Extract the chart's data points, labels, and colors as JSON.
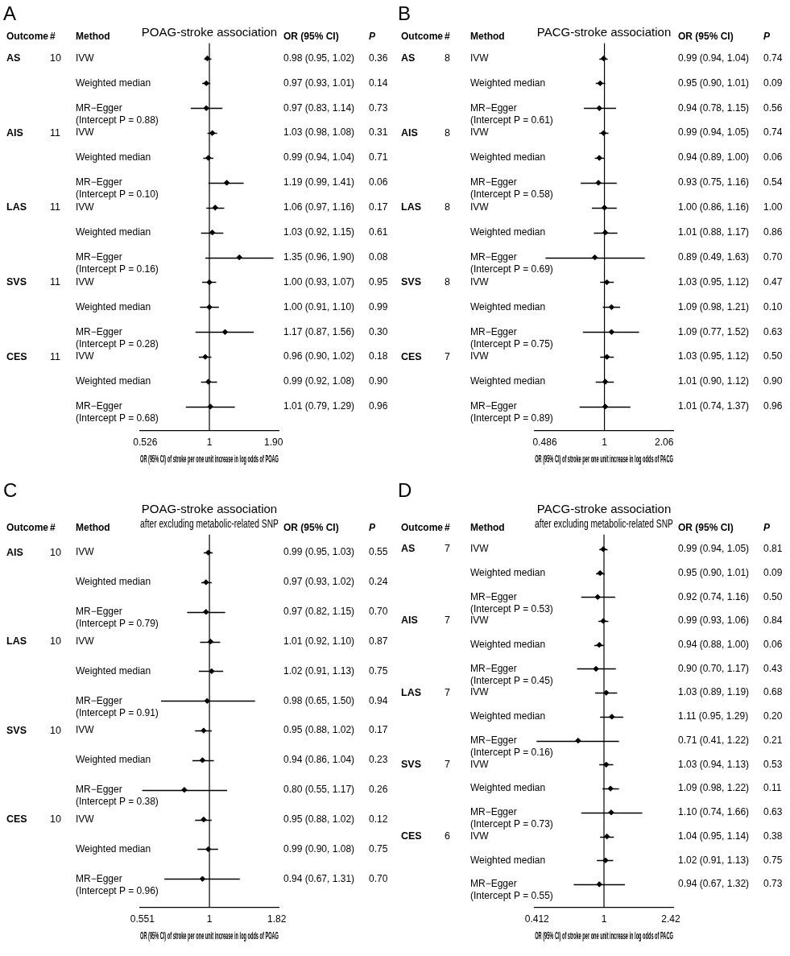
{
  "chart_data": [
    {
      "type": "scatter",
      "orientation": "horizontal",
      "title": "POAG-stroke association",
      "xlabel": "OR (95% CI) of stroke per one unit increase in log odds of POAG",
      "log": "x",
      "xlim": [
        0.5,
        2.0
      ],
      "xticks": [
        0.526,
        1,
        {
          "value": 1.9,
          "label": "1.90"
        }
      ],
      "ref_lines": [
        {
          "axis": "x",
          "value": 1
        }
      ],
      "marker": "diamond",
      "color": "#000000",
      "legend": false,
      "annotations": [
        "A",
        "Outcome",
        "#",
        "Method",
        "OR (95% CI)",
        "P",
        "0.36",
        "0.14",
        "0.73",
        "0.31",
        "0.71",
        "0.06",
        "0.17",
        "0.61",
        "0.08",
        "0.95",
        "0.99",
        "0.30",
        "0.18",
        "0.90",
        "0.96",
        "AS",
        "10",
        "AIS",
        "11",
        "LAS",
        "11",
        "SVS",
        "11",
        "CES",
        "11"
      ],
      "categories": [
        "IVW",
        "Weighted median",
        "MR−Egger\n(Intercept P = 0.88)",
        "IVW",
        "Weighted median",
        "MR−Egger\n(Intercept P = 0.10)",
        "IVW",
        "Weighted median",
        "MR−Egger\n(Intercept P = 0.16)",
        "IVW",
        "Weighted median",
        "MR−Egger\n(Intercept P = 0.28)",
        "IVW",
        "Weighted median",
        "MR−Egger\n(Intercept P = 0.68)"
      ],
      "values": [
        0.98,
        0.97,
        0.97,
        1.03,
        0.99,
        1.19,
        1.06,
        1.03,
        1.35,
        1.0,
        1.0,
        1.17,
        0.96,
        0.99,
        1.01
      ],
      "errors": [
        [
          0.95,
          1.02
        ],
        [
          0.93,
          1.01
        ],
        [
          0.83,
          1.14
        ],
        [
          0.98,
          1.08
        ],
        [
          0.94,
          1.04
        ],
        [
          0.99,
          1.41
        ],
        [
          0.97,
          1.16
        ],
        [
          0.92,
          1.15
        ],
        [
          0.96,
          1.9
        ],
        [
          0.93,
          1.07
        ],
        [
          0.91,
          1.1
        ],
        [
          0.87,
          1.56
        ],
        [
          0.9,
          1.02
        ],
        [
          0.92,
          1.08
        ],
        [
          0.79,
          1.29
        ]
      ],
      "value_labels": [
        "0.98 (0.95, 1.02)",
        "0.97 (0.93, 1.01)",
        "0.97 (0.83, 1.14)",
        "1.03 (0.98, 1.08)",
        "0.99 (0.94, 1.04)",
        "1.19 (0.99, 1.41)",
        "1.06 (0.97, 1.16)",
        "1.03 (0.92, 1.15)",
        "1.35 (0.96, 1.90)",
        "1.00 (0.93, 1.07)",
        "1.00 (0.91, 1.10)",
        "1.17 (0.87, 1.56)",
        "0.96 (0.90, 1.02)",
        "0.99 (0.92, 1.08)",
        "1.01 (0.79, 1.29)"
      ]
    },
    {
      "type": "scatter",
      "orientation": "horizontal",
      "title": "PACG-stroke association",
      "xlabel": "OR (95% CI) of stroke per one unit increase in log odds of PACG",
      "log": "x",
      "xlim": [
        0.43,
        2.3
      ],
      "xticks": [
        0.486,
        1,
        2.06
      ],
      "ref_lines": [
        {
          "axis": "x",
          "value": 1
        }
      ],
      "marker": "diamond",
      "color": "#000000",
      "legend": false,
      "annotations": [
        "B",
        "Outcome",
        "#",
        "Method",
        "OR (95% CI)",
        "P",
        "0.74",
        "0.09",
        "0.56",
        "0.74",
        "0.06",
        "0.54",
        "1.00",
        "0.86",
        "0.70",
        "0.47",
        "0.10",
        "0.63",
        "0.50",
        "0.90",
        "0.96",
        "AS",
        "8",
        "AIS",
        "8",
        "LAS",
        "8",
        "SVS",
        "8",
        "CES",
        "7"
      ],
      "categories": [
        "IVW",
        "Weighted median",
        "MR−Egger\n(Intercept P = 0.61)",
        "IVW",
        "Weighted median",
        "MR−Egger\n(Intercept P = 0.58)",
        "IVW",
        "Weighted median",
        "MR−Egger\n(Intercept P = 0.69)",
        "IVW",
        "Weighted median",
        "MR−Egger\n(Intercept P = 0.75)",
        "IVW",
        "Weighted median",
        "MR−Egger\n(Intercept P = 0.89)"
      ],
      "values": [
        0.99,
        0.95,
        0.94,
        0.99,
        0.94,
        0.93,
        1.0,
        1.01,
        0.89,
        1.03,
        1.09,
        1.09,
        1.03,
        1.01,
        1.01
      ],
      "errors": [
        [
          0.94,
          1.04
        ],
        [
          0.9,
          1.01
        ],
        [
          0.78,
          1.15
        ],
        [
          0.94,
          1.05
        ],
        [
          0.89,
          1.0
        ],
        [
          0.75,
          1.16
        ],
        [
          0.86,
          1.16
        ],
        [
          0.88,
          1.17
        ],
        [
          0.49,
          1.63
        ],
        [
          0.95,
          1.12
        ],
        [
          0.98,
          1.21
        ],
        [
          0.77,
          1.52
        ],
        [
          0.95,
          1.12
        ],
        [
          0.9,
          1.12
        ],
        [
          0.74,
          1.37
        ]
      ],
      "value_labels": [
        "0.99 (0.94, 1.04)",
        "0.95 (0.90, 1.01)",
        "0.94 (0.78, 1.15)",
        "0.99 (0.94, 1.05)",
        "0.94 (0.89, 1.00)",
        "0.93 (0.75, 1.16)",
        "1.00 (0.86, 1.16)",
        "1.01 (0.88, 1.17)",
        "0.89 (0.49, 1.63)",
        "1.03 (0.95, 1.12)",
        "1.09 (0.98, 1.21)",
        "1.09 (0.77, 1.52)",
        "1.03 (0.95, 1.12)",
        "1.01 (0.90, 1.12)",
        "1.01 (0.74, 1.37)"
      ]
    },
    {
      "type": "scatter",
      "orientation": "horizontal",
      "title": "POAG-stroke association",
      "subtitle": "after excluding metabolic-related SNP",
      "xlabel": "OR (95% CI) of stroke per one unit increase in log odds of POAG",
      "log": "x",
      "xlim": [
        0.54,
        1.85
      ],
      "xticks": [
        0.551,
        1,
        1.82
      ],
      "ref_lines": [
        {
          "axis": "x",
          "value": 1
        }
      ],
      "marker": "diamond",
      "color": "#000000",
      "legend": false,
      "annotations": [
        "C",
        "Outcome",
        "#",
        "Method",
        "OR (95% CI)",
        "P",
        "0.55",
        "0.24",
        "0.70",
        "0.87",
        "0.75",
        "0.94",
        "0.17",
        "0.23",
        "0.26",
        "0.12",
        "0.75",
        "0.70",
        "AIS",
        "10",
        "LAS",
        "10",
        "SVS",
        "10",
        "CES",
        "10"
      ],
      "categories": [
        "IVW",
        "Weighted median",
        "MR−Egger\n(Intercept P = 0.79)",
        "IVW",
        "Weighted median",
        "MR−Egger\n(Intercept P = 0.91)",
        "IVW",
        "Weighted median",
        "MR−Egger\n(Intercept P = 0.38)",
        "IVW",
        "Weighted median",
        "MR−Egger\n(Intercept P = 0.96)"
      ],
      "values": [
        0.99,
        0.97,
        0.97,
        1.01,
        1.02,
        0.98,
        0.95,
        0.94,
        0.8,
        0.95,
        0.99,
        0.94
      ],
      "errors": [
        [
          0.95,
          1.03
        ],
        [
          0.93,
          1.02
        ],
        [
          0.82,
          1.15
        ],
        [
          0.92,
          1.1
        ],
        [
          0.91,
          1.13
        ],
        [
          0.65,
          1.5
        ],
        [
          0.88,
          1.02
        ],
        [
          0.86,
          1.04
        ],
        [
          0.55,
          1.17
        ],
        [
          0.88,
          1.02
        ],
        [
          0.9,
          1.08
        ],
        [
          0.67,
          1.31
        ]
      ],
      "value_labels": [
        "0.99 (0.95, 1.03)",
        "0.97 (0.93, 1.02)",
        "0.97 (0.82, 1.15)",
        "1.01 (0.92, 1.10)",
        "1.02 (0.91, 1.13)",
        "0.98 (0.65, 1.50)",
        "0.95 (0.88, 1.02)",
        "0.94 (0.86, 1.04)",
        "0.80 (0.55, 1.17)",
        "0.95 (0.88, 1.02)",
        "0.99 (0.90, 1.08)",
        "0.94 (0.67, 1.31)"
      ]
    },
    {
      "type": "scatter",
      "orientation": "horizontal",
      "title": "PACG-stroke association",
      "subtitle": "after excluding metabolic-related SNP",
      "xlabel": "OR (95% CI) of stroke per one unit increase in log odds of PACG",
      "log": "x",
      "xlim": [
        0.4,
        2.5
      ],
      "xticks": [
        0.412,
        1,
        2.42
      ],
      "ref_lines": [
        {
          "axis": "x",
          "value": 1
        }
      ],
      "marker": "diamond",
      "color": "#000000",
      "legend": false,
      "annotations": [
        "D",
        "Outcome",
        "#",
        "Method",
        "OR (95% CI)",
        "P",
        "0.81",
        "0.09",
        "0.50",
        "0.84",
        "0.06",
        "0.43",
        "0.68",
        "0.20",
        "0.21",
        "0.53",
        "0.11",
        "0.63",
        "0.38",
        "0.75",
        "0.73",
        "AS",
        "7",
        "AIS",
        "7",
        "LAS",
        "7",
        "SVS",
        "7",
        "CES",
        "6"
      ],
      "categories": [
        "IVW",
        "Weighted median",
        "MR−Egger\n(Intercept P = 0.53)",
        "IVW",
        "Weighted median",
        "MR−Egger\n(Intercept P = 0.45)",
        "IVW",
        "Weighted median",
        "MR−Egger\n(Intercept P = 0.16)",
        "IVW",
        "Weighted median",
        "MR−Egger\n(Intercept P = 0.73)",
        "IVW",
        "Weighted median",
        "MR−Egger\n(Intercept P = 0.55)"
      ],
      "values": [
        0.99,
        0.95,
        0.92,
        0.99,
        0.94,
        0.9,
        1.03,
        1.11,
        0.71,
        1.03,
        1.09,
        1.1,
        1.04,
        1.02,
        0.94
      ],
      "errors": [
        [
          0.94,
          1.05
        ],
        [
          0.9,
          1.01
        ],
        [
          0.74,
          1.16
        ],
        [
          0.93,
          1.06
        ],
        [
          0.88,
          1.0
        ],
        [
          0.7,
          1.17
        ],
        [
          0.89,
          1.19
        ],
        [
          0.95,
          1.29
        ],
        [
          0.41,
          1.22
        ],
        [
          0.94,
          1.13
        ],
        [
          0.98,
          1.22
        ],
        [
          0.74,
          1.66
        ],
        [
          0.95,
          1.14
        ],
        [
          0.91,
          1.13
        ],
        [
          0.67,
          1.32
        ]
      ],
      "value_labels": [
        "0.99 (0.94, 1.05)",
        "0.95 (0.90, 1.01)",
        "0.92 (0.74, 1.16)",
        "0.99 (0.93, 1.06)",
        "0.94 (0.88, 1.00)",
        "0.90 (0.70, 1.17)",
        "1.03 (0.89, 1.19)",
        "1.11 (0.95, 1.29)",
        "0.71 (0.41, 1.22)",
        "1.03 (0.94, 1.13)",
        "1.09 (0.98, 1.22)",
        "1.10 (0.74, 1.66)",
        "1.04 (0.95, 1.14)",
        "1.02 (0.91, 1.13)",
        "0.94 (0.67, 1.32)"
      ]
    }
  ]
}
